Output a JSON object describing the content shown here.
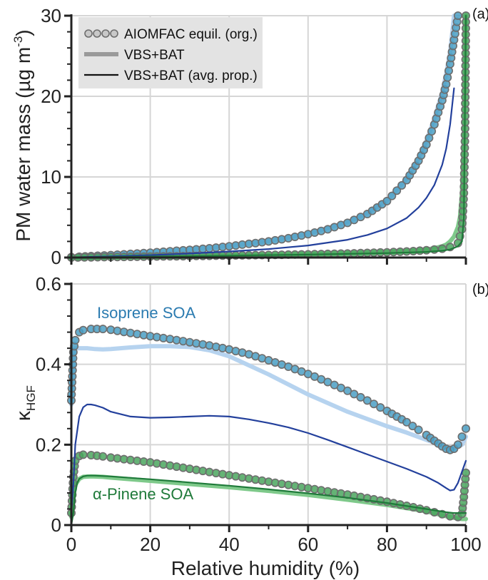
{
  "chart_data": [
    {
      "panel": "a",
      "type": "line",
      "panel_label": "(a)",
      "ylabel_text": "PM water mass (µg m",
      "ylabel_sup": "-3",
      "ylabel_close": ")",
      "xlabel": "",
      "xlim": [
        0,
        100
      ],
      "ylim": [
        0,
        30
      ],
      "xticks": [
        "0",
        "20",
        "40",
        "60",
        "80",
        "100"
      ],
      "yticks": [
        "0",
        "10",
        "20",
        "30"
      ],
      "grid": true,
      "legend_placement": "top-left",
      "legend": [
        {
          "label": "AIOMFAC equil. (org.)",
          "style": "circles"
        },
        {
          "label": "VBS+BAT",
          "style": "thick-gray"
        },
        {
          "label": "VBS+BAT (avg. prop.)",
          "style": "thin-black"
        }
      ],
      "series": [
        {
          "system": "isoprene",
          "method": "AIOMFAC",
          "color": "#4a9fc4",
          "x": [
            0,
            2,
            5,
            10,
            15,
            20,
            25,
            30,
            35,
            40,
            45,
            50,
            55,
            60,
            65,
            70,
            75,
            80,
            85,
            88,
            90,
            92,
            94,
            95,
            96,
            97,
            97.5,
            98
          ],
          "y": [
            0.05,
            0.1,
            0.18,
            0.3,
            0.45,
            0.6,
            0.78,
            0.95,
            1.15,
            1.4,
            1.7,
            2.0,
            2.4,
            2.9,
            3.5,
            4.3,
            5.4,
            7.0,
            9.6,
            12.0,
            14.0,
            16.5,
            19.5,
            21.5,
            24.0,
            27.0,
            28.5,
            30.0
          ]
        },
        {
          "system": "isoprene",
          "method": "VBS+BAT",
          "color": "#b6d3ef",
          "x": [
            0,
            5,
            10,
            20,
            30,
            40,
            50,
            60,
            70,
            75,
            80,
            85,
            88,
            90,
            92,
            94,
            95,
            96,
            97
          ],
          "y": [
            0.05,
            0.2,
            0.35,
            0.65,
            1.0,
            1.45,
            2.05,
            2.95,
            4.4,
            5.5,
            7.1,
            9.8,
            12.3,
            14.5,
            17.2,
            20.5,
            22.8,
            25.5,
            30.0
          ]
        },
        {
          "system": "isoprene",
          "method": "VBS+BAT (avg. prop.)",
          "color": "#23409c",
          "x": [
            0,
            10,
            20,
            30,
            40,
            50,
            60,
            70,
            75,
            80,
            85,
            88,
            90,
            92,
            94,
            95,
            96,
            97
          ],
          "y": [
            0.02,
            0.15,
            0.3,
            0.5,
            0.75,
            1.05,
            1.5,
            2.2,
            2.8,
            3.6,
            4.9,
            6.2,
            7.4,
            9.0,
            11.5,
            13.5,
            16.5,
            21.0
          ]
        },
        {
          "system": "alpha-pinene",
          "method": "AIOMFAC",
          "color": "#4aa65e",
          "x": [
            0,
            5,
            10,
            20,
            30,
            40,
            50,
            60,
            70,
            80,
            85,
            90,
            94,
            96,
            98,
            99,
            99.5,
            99.8,
            100
          ],
          "y": [
            0.0,
            0.03,
            0.06,
            0.12,
            0.18,
            0.25,
            0.32,
            0.4,
            0.5,
            0.65,
            0.75,
            0.9,
            1.1,
            1.3,
            1.8,
            3.5,
            8.0,
            16.0,
            30.0
          ]
        },
        {
          "system": "alpha-pinene",
          "method": "VBS+BAT",
          "color": "#7ec98a",
          "x": [
            0,
            20,
            40,
            60,
            80,
            85,
            90,
            92,
            94,
            95,
            96,
            97,
            98,
            98.5,
            99,
            99.5,
            100
          ],
          "y": [
            0.0,
            0.15,
            0.28,
            0.42,
            0.7,
            0.8,
            1.0,
            1.15,
            1.4,
            1.6,
            2.0,
            2.6,
            3.8,
            5.0,
            8.0,
            15.0,
            30.0
          ]
        },
        {
          "system": "alpha-pinene",
          "method": "VBS+BAT (avg. prop.)",
          "color": "#1f7a3a",
          "x": [
            0,
            20,
            40,
            60,
            80,
            90,
            94,
            96,
            98,
            99,
            99.5,
            100
          ],
          "y": [
            0.0,
            0.12,
            0.24,
            0.36,
            0.55,
            0.7,
            0.85,
            1.0,
            1.4,
            2.0,
            5.0,
            30.0
          ]
        }
      ]
    },
    {
      "panel": "b",
      "type": "line",
      "panel_label": "(b)",
      "ylabel_main": "κ",
      "ylabel_sub": "HGF",
      "xlabel": "Relative humidity (%)",
      "xlim": [
        0,
        100
      ],
      "ylim": [
        0,
        0.6
      ],
      "xticks": [
        "0",
        "20",
        "40",
        "60",
        "80",
        "100"
      ],
      "yticks": [
        "0",
        "0.2",
        "0.4",
        "0.6"
      ],
      "grid": true,
      "annotations": [
        {
          "text": "Isoprene SOA",
          "color": "#2b7bb0"
        },
        {
          "text": "α-Pinene SOA",
          "color": "#1f7a3a"
        }
      ],
      "series": [
        {
          "system": "isoprene",
          "method": "AIOMFAC",
          "color": "#4a9fc4",
          "x": [
            0,
            0.5,
            1,
            2,
            3,
            5,
            8,
            10,
            15,
            20,
            25,
            30,
            35,
            40,
            45,
            50,
            55,
            60,
            65,
            70,
            75,
            80,
            85,
            88,
            90,
            92,
            94,
            95,
            96,
            97,
            98,
            99,
            100
          ],
          "y": [
            0.31,
            0.43,
            0.46,
            0.48,
            0.485,
            0.488,
            0.488,
            0.486,
            0.478,
            0.47,
            0.463,
            0.455,
            0.447,
            0.437,
            0.425,
            0.41,
            0.394,
            0.376,
            0.356,
            0.334,
            0.31,
            0.284,
            0.256,
            0.237,
            0.224,
            0.21,
            0.196,
            0.19,
            0.187,
            0.19,
            0.2,
            0.22,
            0.24
          ]
        },
        {
          "system": "isoprene",
          "method": "VBS+BAT",
          "color": "#b6d3ef",
          "x": [
            0,
            0.5,
            1,
            2,
            4,
            6,
            8,
            10,
            15,
            20,
            25,
            30,
            35,
            40,
            50,
            60,
            70,
            80,
            85,
            90,
            93,
            95,
            97,
            99,
            100
          ],
          "y": [
            0.3,
            0.42,
            0.44,
            0.44,
            0.44,
            0.438,
            0.437,
            0.438,
            0.442,
            0.445,
            0.445,
            0.443,
            0.435,
            0.42,
            0.375,
            0.325,
            0.282,
            0.246,
            0.23,
            0.212,
            0.202,
            0.195,
            0.19,
            0.2,
            0.22
          ]
        },
        {
          "system": "isoprene",
          "method": "VBS+BAT (avg. prop.)",
          "color": "#23409c",
          "x": [
            0,
            0.5,
            1,
            2,
            3,
            4,
            5,
            6,
            8,
            10,
            15,
            20,
            25,
            30,
            35,
            40,
            45,
            50,
            55,
            60,
            65,
            70,
            75,
            80,
            85,
            90,
            93,
            95,
            96,
            97,
            98,
            100
          ],
          "y": [
            0.03,
            0.1,
            0.2,
            0.27,
            0.293,
            0.3,
            0.3,
            0.298,
            0.292,
            0.282,
            0.27,
            0.267,
            0.268,
            0.27,
            0.272,
            0.27,
            0.263,
            0.254,
            0.243,
            0.229,
            0.212,
            0.194,
            0.176,
            0.158,
            0.14,
            0.12,
            0.105,
            0.092,
            0.086,
            0.088,
            0.105,
            0.16
          ]
        },
        {
          "system": "alpha-pinene",
          "method": "AIOMFAC",
          "color": "#4aa65e",
          "x": [
            0,
            0.5,
            1,
            2,
            3,
            5,
            8,
            10,
            15,
            20,
            25,
            30,
            35,
            40,
            45,
            50,
            55,
            60,
            65,
            70,
            75,
            80,
            85,
            90,
            92,
            94,
            96,
            98,
            99,
            99.5,
            100
          ],
          "y": [
            0.03,
            0.12,
            0.16,
            0.172,
            0.175,
            0.174,
            0.171,
            0.168,
            0.162,
            0.156,
            0.148,
            0.14,
            0.132,
            0.124,
            0.116,
            0.108,
            0.1,
            0.092,
            0.084,
            0.076,
            0.067,
            0.058,
            0.048,
            0.037,
            0.032,
            0.027,
            0.022,
            0.02,
            0.028,
            0.07,
            0.13
          ]
        },
        {
          "system": "alpha-pinene",
          "method": "VBS+BAT",
          "color": "#7ec98a",
          "x": [
            0,
            0.5,
            1,
            2,
            3,
            5,
            8,
            10,
            20,
            30,
            40,
            50,
            60,
            70,
            80,
            90,
            95,
            97,
            99,
            100
          ],
          "y": [
            0.02,
            0.07,
            0.1,
            0.115,
            0.12,
            0.121,
            0.12,
            0.118,
            0.11,
            0.102,
            0.094,
            0.085,
            0.075,
            0.063,
            0.05,
            0.034,
            0.022,
            0.018,
            0.015,
            0.015
          ]
        },
        {
          "system": "alpha-pinene",
          "method": "VBS+BAT (avg. prop.)",
          "color": "#1f7a3a",
          "x": [
            0,
            0.5,
            1,
            1.5,
            2,
            3,
            4,
            6,
            10,
            20,
            30,
            40,
            50,
            60,
            70,
            80,
            90,
            95,
            97,
            99,
            100
          ],
          "y": [
            0.0,
            0.03,
            0.08,
            0.105,
            0.115,
            0.121,
            0.123,
            0.123,
            0.121,
            0.114,
            0.106,
            0.098,
            0.089,
            0.079,
            0.068,
            0.055,
            0.04,
            0.032,
            0.03,
            0.03,
            0.03
          ]
        }
      ]
    }
  ]
}
